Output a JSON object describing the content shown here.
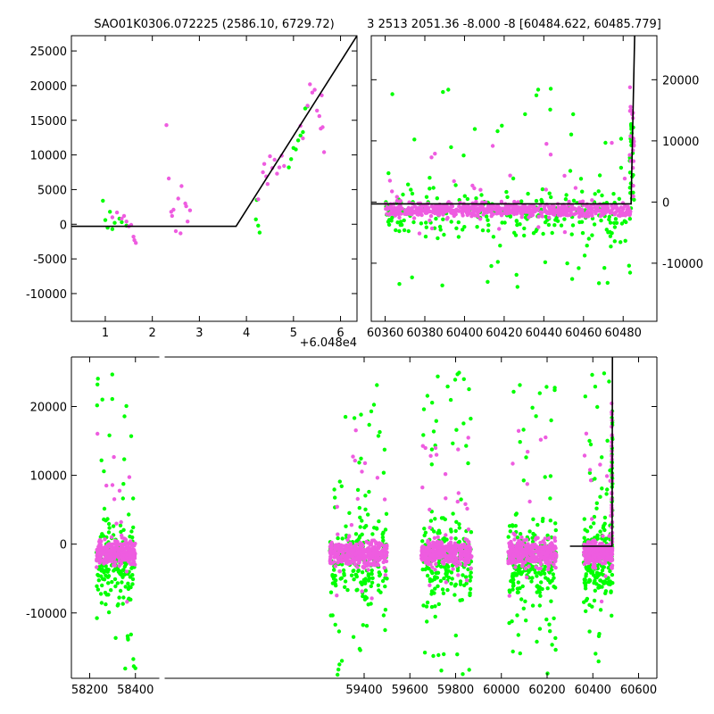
{
  "colors": {
    "green": "#00ff00",
    "magenta": "#ee5ce0",
    "model": "#000000",
    "axis": "#000000"
  },
  "chart_data": [
    {
      "id": "top-left",
      "type": "scatter",
      "title": "SAO01K0306.072225 (2586.10, 6729.72)",
      "offset_label": "+6.048e4",
      "xlim": [
        0.28,
        6.35
      ],
      "ylim": [
        -14000,
        27200
      ],
      "xticks": [
        1,
        2,
        3,
        4,
        5,
        6
      ],
      "yticks": [
        -10000,
        -5000,
        0,
        5000,
        10000,
        15000,
        20000,
        25000
      ],
      "ytick_side": "left",
      "grid": false,
      "model_line": [
        [
          0.28,
          -300
        ],
        [
          3.78,
          -300
        ],
        [
          6.35,
          27200
        ]
      ],
      "series": [
        {
          "color": "green",
          "points": [
            [
              0.95,
              3400
            ],
            [
              1.0,
              600
            ],
            [
              1.05,
              -500
            ],
            [
              1.1,
              1800
            ],
            [
              1.15,
              -700
            ],
            [
              1.2,
              200
            ],
            [
              1.3,
              800
            ],
            [
              1.35,
              300
            ],
            [
              1.45,
              -200
            ],
            [
              4.2,
              700
            ],
            [
              4.25,
              -200
            ],
            [
              4.22,
              3500
            ],
            [
              4.28,
              -1200
            ],
            [
              4.9,
              8200
            ],
            [
              4.95,
              9400
            ],
            [
              5.05,
              10800
            ],
            [
              5.1,
              12100
            ],
            [
              5.15,
              12800
            ],
            [
              5.2,
              13300
            ],
            [
              5.25,
              16700
            ],
            [
              5.3,
              17000
            ],
            [
              5.0,
              11000
            ]
          ]
        },
        {
          "color": "magenta",
          "points": [
            [
              1.15,
              1000
            ],
            [
              1.25,
              1700
            ],
            [
              1.35,
              800
            ],
            [
              1.4,
              1200
            ],
            [
              1.45,
              400
            ],
            [
              1.5,
              -300
            ],
            [
              1.55,
              -100
            ],
            [
              1.6,
              -1800
            ],
            [
              1.62,
              -2300
            ],
            [
              1.65,
              -2700
            ],
            [
              2.3,
              14300
            ],
            [
              2.35,
              6600
            ],
            [
              2.4,
              1800
            ],
            [
              2.42,
              1200
            ],
            [
              2.45,
              2100
            ],
            [
              2.5,
              -1000
            ],
            [
              2.55,
              3700
            ],
            [
              2.6,
              -1300
            ],
            [
              2.62,
              5500
            ],
            [
              2.7,
              3000
            ],
            [
              2.72,
              2600
            ],
            [
              2.75,
              400
            ],
            [
              2.8,
              2000
            ],
            [
              4.25,
              3600
            ],
            [
              4.35,
              7500
            ],
            [
              4.38,
              8700
            ],
            [
              4.42,
              6900
            ],
            [
              4.45,
              5800
            ],
            [
              4.5,
              9800
            ],
            [
              4.55,
              8100
            ],
            [
              4.6,
              9300
            ],
            [
              4.65,
              7300
            ],
            [
              4.7,
              8200
            ],
            [
              4.75,
              9900
            ],
            [
              4.8,
              8400
            ],
            [
              5.15,
              14200
            ],
            [
              5.2,
              12400
            ],
            [
              5.3,
              17100
            ],
            [
              5.35,
              20200
            ],
            [
              5.4,
              19000
            ],
            [
              5.45,
              19400
            ],
            [
              5.5,
              16400
            ],
            [
              5.55,
              15600
            ],
            [
              5.6,
              18600
            ],
            [
              5.62,
              14000
            ],
            [
              5.65,
              10400
            ],
            [
              5.58,
              13800
            ]
          ]
        }
      ]
    },
    {
      "id": "top-right",
      "type": "scatter",
      "title": "3 2513 2051.36 -8.000 -8 [60484.622, 60485.779]",
      "xlim": [
        60353,
        60497
      ],
      "ylim": [
        -19500,
        27200
      ],
      "xticks": [
        60360,
        60380,
        60400,
        60420,
        60440,
        60460,
        60480
      ],
      "yticks": [
        -10000,
        0,
        10000,
        20000
      ],
      "ytick_side": "right",
      "grid": false,
      "model_line": [
        [
          60353,
          -300
        ],
        [
          60484,
          -300
        ],
        [
          60485.8,
          27200
        ]
      ],
      "series": [
        {
          "color": "green",
          "points": []
        },
        {
          "color": "magenta",
          "points": []
        }
      ]
    },
    {
      "id": "bottom",
      "type": "scatter",
      "title": "",
      "xlim": [
        58120,
        60680
      ],
      "ylim": [
        -19500,
        27200
      ],
      "xticks": [
        58200,
        58400,
        59400,
        59600,
        59800,
        60000,
        60200,
        60400,
        60600
      ],
      "yticks": [
        -10000,
        0,
        10000,
        20000
      ],
      "ytick_side": "left",
      "grid": false,
      "axis_break_x": 58520,
      "model_line": [
        [
          60300,
          -300
        ],
        [
          60484,
          -300
        ],
        [
          60485.8,
          27200
        ]
      ],
      "series": [
        {
          "color": "green",
          "points": []
        },
        {
          "color": "magenta",
          "points": []
        }
      ]
    }
  ]
}
